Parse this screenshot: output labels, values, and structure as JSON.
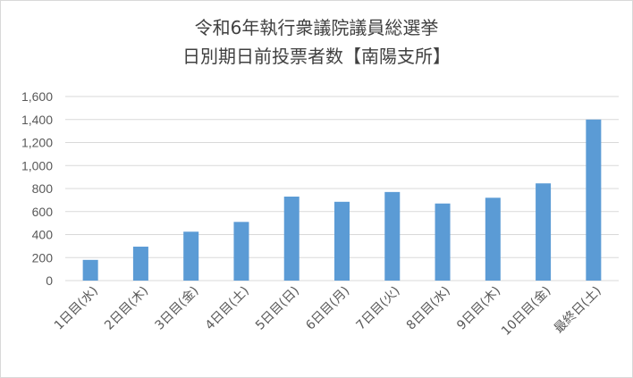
{
  "chart_data": {
    "type": "bar",
    "title_lines": [
      "令和6年執行衆議院議員総選挙",
      "日別期日前投票者数【南陽支所】"
    ],
    "xlabel": "",
    "ylabel": "",
    "categories": [
      "1日目(水)",
      "2日目(木)",
      "3日目(金)",
      "4日目(土)",
      "5日目(日)",
      "6日目(月)",
      "7日目(火)",
      "8日目(水)",
      "9日目(木)",
      "10日目(金)",
      "最終日(土)"
    ],
    "series": [
      {
        "values": [
          180,
          295,
          425,
          510,
          730,
          685,
          770,
          670,
          720,
          845,
          1400
        ]
      }
    ],
    "ylim": [
      0,
      1600
    ],
    "ytick_step": 200,
    "yticks": [
      "0",
      "200",
      "400",
      "600",
      "800",
      "1,000",
      "1,200",
      "1,400",
      "1,600"
    ],
    "grid": true,
    "legend": "none",
    "bar_color": "#5b9bd5",
    "grid_color": "#d9d9d9"
  }
}
